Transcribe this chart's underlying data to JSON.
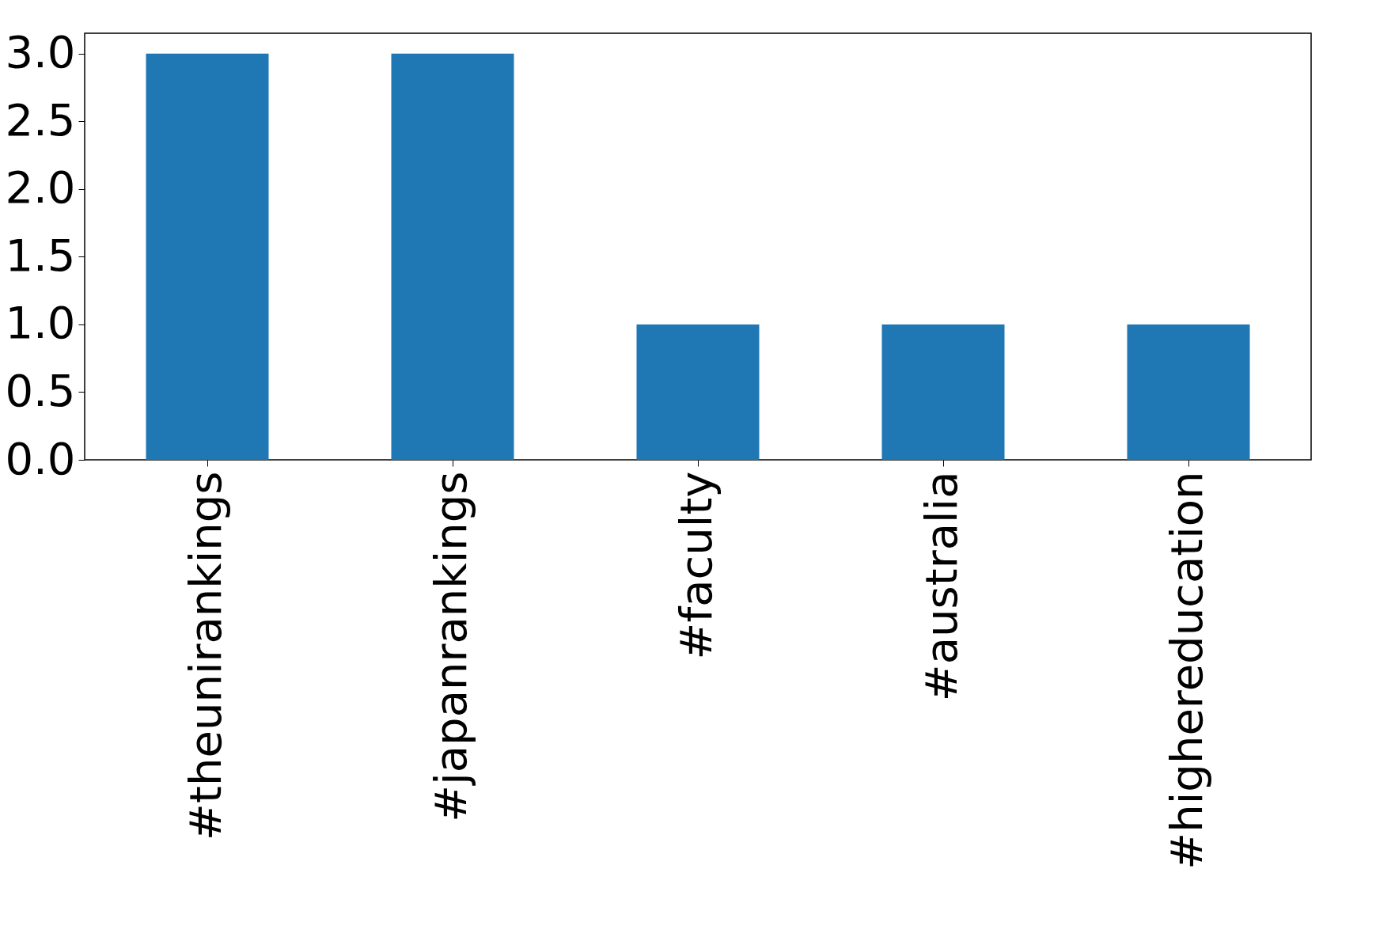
{
  "chart_data": {
    "type": "bar",
    "categories": [
      "#theunirankings",
      "#japanrankings",
      "#faculty",
      "#australia",
      "#highereducation"
    ],
    "values": [
      3,
      3,
      1,
      1,
      1
    ],
    "color": "#1f77b4",
    "ylim": [
      0,
      3.15
    ],
    "yticks": [
      {
        "value": 0,
        "label": "0.0"
      },
      {
        "value": 0.5,
        "label": "0.5"
      },
      {
        "value": 1,
        "label": "1.0"
      },
      {
        "value": 1.5,
        "label": "1.5"
      },
      {
        "value": 2,
        "label": "2.0"
      },
      {
        "value": 2.5,
        "label": "2.5"
      },
      {
        "value": 3,
        "label": "3.0"
      }
    ],
    "grid": false
  }
}
